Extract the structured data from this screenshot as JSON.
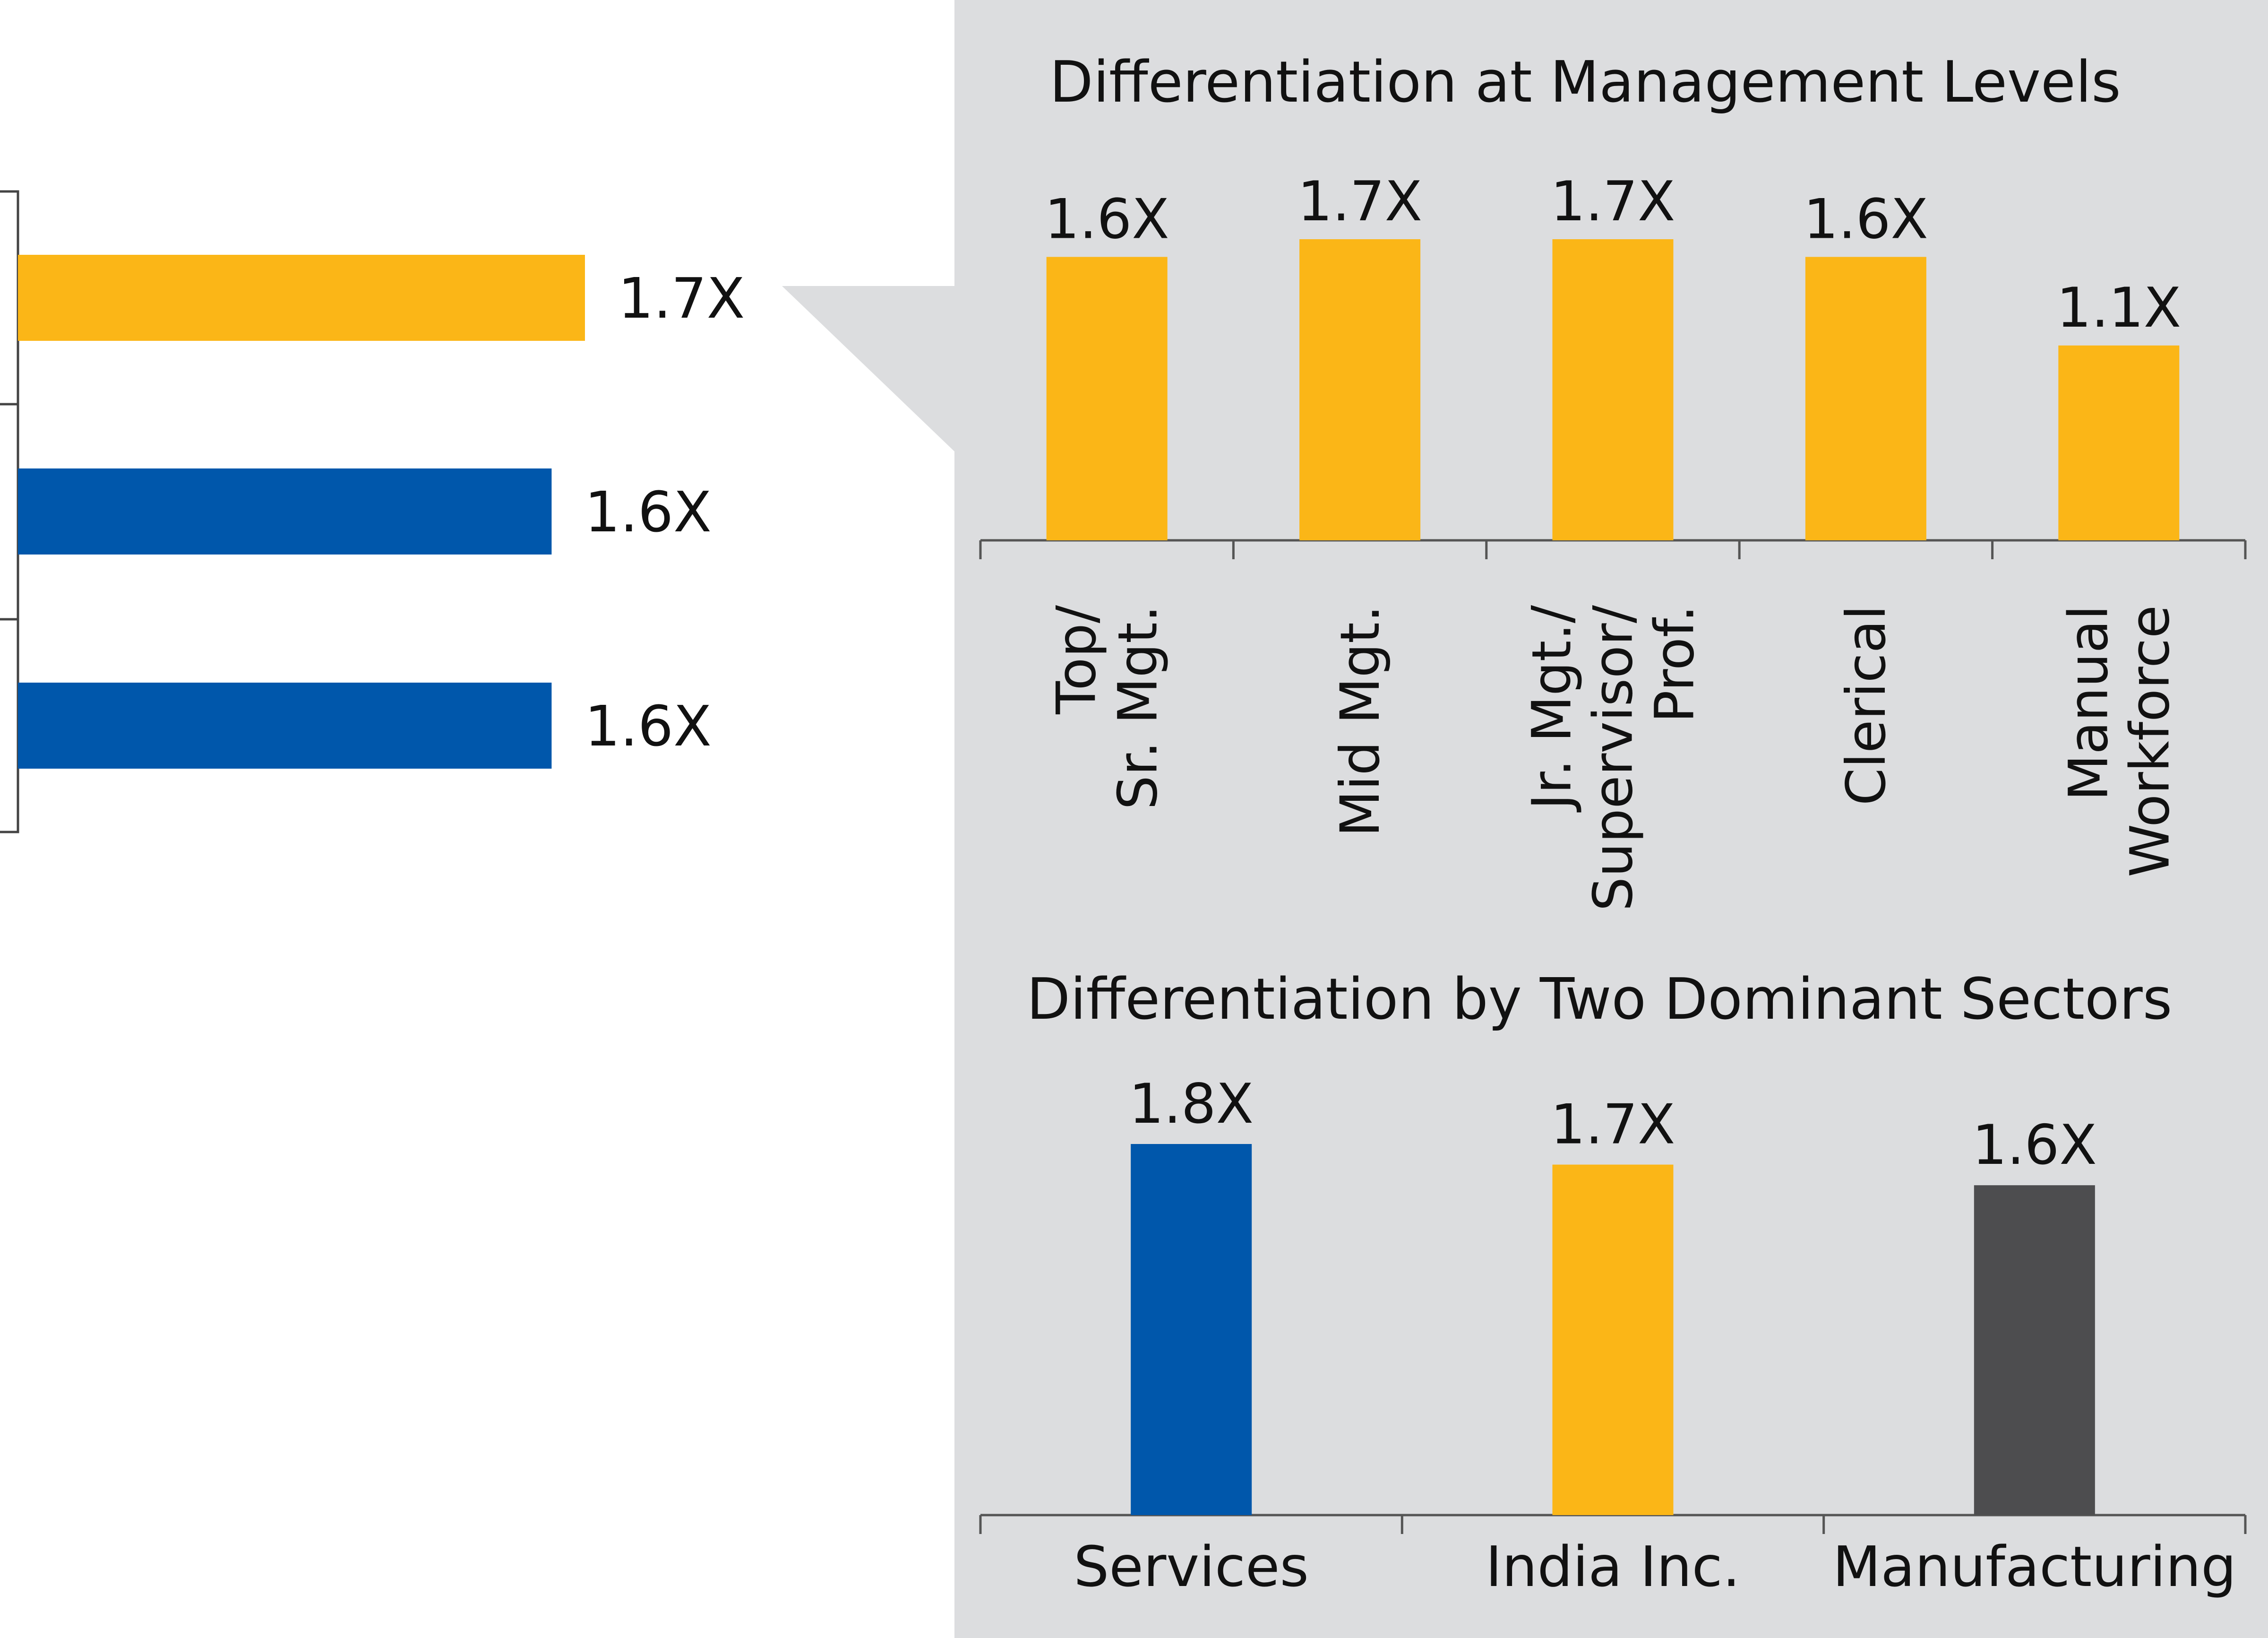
{
  "colors": {
    "gold": "#FBB617",
    "blue": "#0057AB",
    "grey": "#4D4D4F",
    "panel": "#DCDDDF"
  },
  "chart_data": [
    {
      "type": "bar",
      "orientation": "horizontal",
      "note": "partially cropped chart at left",
      "values": [
        1.7,
        1.6,
        1.6
      ],
      "labels": [
        "1.7X",
        "1.6X",
        "1.6X"
      ],
      "colors": [
        "#FBB617",
        "#0057AB",
        "#0057AB"
      ],
      "xlim": [
        0,
        1.7
      ]
    },
    {
      "type": "bar",
      "title": "Differentiation at Management Levels",
      "categories": [
        [
          "Top/",
          "Sr. Mgt."
        ],
        [
          "Mid Mgt."
        ],
        [
          "Jr. Mgt./",
          "Supervisor/",
          "Prof."
        ],
        [
          "Clerical"
        ],
        [
          "Manual",
          "Workforce"
        ]
      ],
      "values": [
        1.6,
        1.7,
        1.7,
        1.6,
        1.1
      ],
      "labels": [
        "1.6X",
        "1.7X",
        "1.7X",
        "1.6X",
        "1.1X"
      ],
      "color": "#FBB617",
      "ylim": [
        0,
        1.7
      ]
    },
    {
      "type": "bar",
      "title": "Differentiation by Two Dominant Sectors",
      "categories": [
        "Services",
        "India Inc.",
        "Manufacturing"
      ],
      "values": [
        1.8,
        1.7,
        1.6
      ],
      "labels": [
        "1.8X",
        "1.7X",
        "1.6X"
      ],
      "colors": [
        "#0057AB",
        "#FBB617",
        "#4D4D4F"
      ],
      "ylim": [
        0,
        1.8
      ]
    }
  ]
}
